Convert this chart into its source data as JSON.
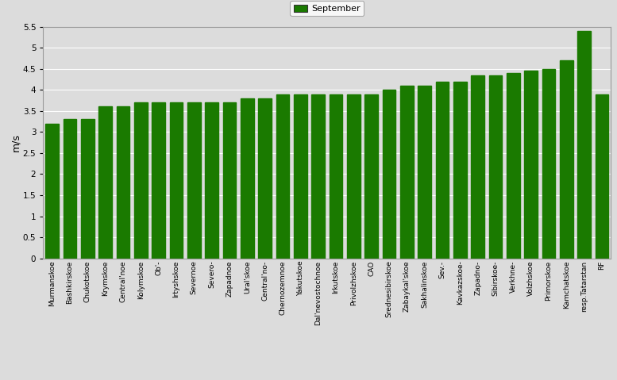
{
  "categories": [
    "Murmanskoe",
    "Bashkirskoe",
    "Chukotskoe",
    "Krymskoe",
    "Central'noe",
    "Kolymskoe",
    "Ob'-",
    "Irtyshskoe",
    "Severnoe",
    "Severo-",
    "Zapadnoe",
    "Ural'skoe",
    "Central'no-",
    "Chernozemnoe",
    "Yakutskoe",
    "Dal'nevostochnoe",
    "Irkutskoe",
    "Privolzhskoe",
    "CAO",
    "Srednesibirskoe",
    "Zabaykal'skoe",
    "Sakhalinskoe",
    "Sev.-",
    "Kavkazskoe-",
    "Zapadno-",
    "Sibirskoe-",
    "Verkhnе-",
    "Volzhskoe",
    "Primorskoe",
    "Kamchatskoe",
    "resp.Tatarstan",
    "RF"
  ],
  "values": [
    3.2,
    3.3,
    3.3,
    3.6,
    3.6,
    3.7,
    3.7,
    3.7,
    3.7,
    3.7,
    3.7,
    3.8,
    3.8,
    3.9,
    3.9,
    3.9,
    3.9,
    3.9,
    3.9,
    4.0,
    4.1,
    4.1,
    4.2,
    4.2,
    4.35,
    4.35,
    4.4,
    4.45,
    4.5,
    4.7,
    5.4,
    3.9
  ],
  "bar_color": "#1a7a00",
  "ylabel": "m/s",
  "ylim": [
    0,
    5.5
  ],
  "yticks": [
    0,
    0.5,
    1.0,
    1.5,
    2.0,
    2.5,
    3.0,
    3.5,
    4.0,
    4.5,
    5.0,
    5.5
  ],
  "ytick_labels": [
    "0",
    "0.5",
    "1",
    "1.5",
    "2",
    "2.5",
    "3",
    "3.5",
    "4",
    "4.5",
    "5",
    "5.5"
  ],
  "legend_label": "September",
  "legend_color": "#1a7a00",
  "plot_bg_color": "#dcdcdc",
  "fig_bg_color": "#dcdcdc",
  "tick_fontsize": 7.5,
  "ylabel_fontsize": 9
}
